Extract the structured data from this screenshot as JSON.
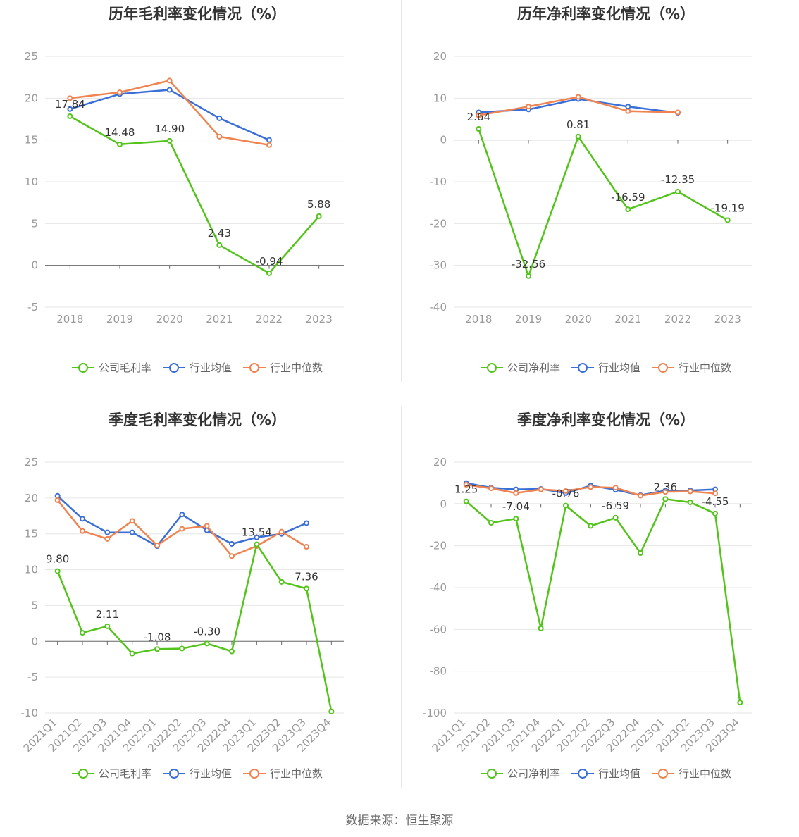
{
  "colors": {
    "company": "#52c41a",
    "industry_avg": "#3a6fd8",
    "industry_median": "#f0834f"
  },
  "legend_labels": {
    "gross": [
      "公司毛利率",
      "行业均值",
      "行业中位数"
    ],
    "net": [
      "公司净利率",
      "行业均值",
      "行业中位数"
    ]
  },
  "source_text": "数据来源：恒生聚源",
  "chart_data": [
    {
      "type": "line",
      "title": "历年毛利率变化情况（%）",
      "categories": [
        "2018",
        "2019",
        "2020",
        "2021",
        "2022",
        "2023"
      ],
      "ylim": [
        -5,
        25
      ],
      "yticks": [
        25,
        20,
        15,
        10,
        5,
        0,
        -5
      ],
      "grid": true,
      "legend": "bottom",
      "series": [
        {
          "name": "公司毛利率",
          "values": [
            17.84,
            14.48,
            14.9,
            2.43,
            -0.94,
            5.88
          ],
          "labels": [
            "17.84",
            "14.48",
            "14.90",
            "2.43",
            "-0.94",
            "5.88"
          ]
        },
        {
          "name": "行业均值",
          "values": [
            18.7,
            20.5,
            21.0,
            17.6,
            15.0,
            null
          ]
        },
        {
          "name": "行业中位数",
          "values": [
            20.0,
            20.7,
            22.1,
            15.4,
            14.4,
            null
          ]
        }
      ]
    },
    {
      "type": "line",
      "title": "历年净利率变化情况（%）",
      "categories": [
        "2018",
        "2019",
        "2020",
        "2021",
        "2022",
        "2023"
      ],
      "ylim": [
        -40,
        20
      ],
      "yticks": [
        20,
        10,
        0,
        -10,
        -20,
        -30,
        -40
      ],
      "grid": true,
      "legend": "bottom",
      "series": [
        {
          "name": "公司净利率",
          "values": [
            2.64,
            -32.56,
            0.81,
            -16.59,
            -12.35,
            -19.19
          ],
          "labels": [
            "2.64",
            "-32.56",
            "0.81",
            "-16.59",
            "-12.35",
            "-19.19"
          ]
        },
        {
          "name": "行业均值",
          "values": [
            6.6,
            7.3,
            9.8,
            8.0,
            6.5,
            null
          ]
        },
        {
          "name": "行业中位数",
          "values": [
            5.9,
            8.0,
            10.3,
            6.9,
            6.6,
            null
          ]
        }
      ]
    },
    {
      "type": "line",
      "title": "季度毛利率变化情况（%）",
      "categories": [
        "2021Q1",
        "2021Q2",
        "2021Q3",
        "2021Q4",
        "2022Q1",
        "2022Q2",
        "2022Q3",
        "2022Q4",
        "2023Q1",
        "2023Q2",
        "2023Q3",
        "2023Q4"
      ],
      "ylim": [
        -10,
        25
      ],
      "yticks": [
        25,
        20,
        15,
        10,
        5,
        0,
        -5,
        -10
      ],
      "grid": true,
      "legend": "bottom",
      "series": [
        {
          "name": "公司毛利率",
          "values": [
            9.8,
            1.2,
            2.11,
            -1.7,
            -1.08,
            -1.0,
            -0.3,
            -1.4,
            13.54,
            8.3,
            7.36,
            -9.8
          ],
          "labels": [
            "9.80",
            "",
            "2.11",
            "",
            "-1.08",
            "",
            "-0.30",
            "",
            "13.54",
            "",
            "7.36",
            ""
          ]
        },
        {
          "name": "行业均值",
          "values": [
            20.3,
            17.1,
            15.2,
            15.2,
            13.3,
            17.7,
            15.5,
            13.6,
            14.5,
            15.0,
            16.5,
            null
          ]
        },
        {
          "name": "行业中位数",
          "values": [
            19.7,
            15.4,
            14.3,
            16.8,
            13.4,
            15.7,
            16.1,
            11.9,
            13.3,
            15.3,
            13.2,
            null
          ]
        }
      ]
    },
    {
      "type": "line",
      "title": "季度净利率变化情况（%）",
      "categories": [
        "2021Q1",
        "2021Q2",
        "2021Q3",
        "2021Q4",
        "2022Q1",
        "2022Q2",
        "2022Q3",
        "2022Q4",
        "2023Q1",
        "2023Q2",
        "2023Q3",
        "2023Q4"
      ],
      "ylim": [
        -100,
        20
      ],
      "yticks": [
        20,
        0,
        -20,
        -40,
        -60,
        -80,
        -100
      ],
      "grid": true,
      "legend": "bottom",
      "series": [
        {
          "name": "公司净利率",
          "values": [
            1.25,
            -9.0,
            -7.04,
            -59.5,
            -0.76,
            -10.5,
            -6.59,
            -23.5,
            2.36,
            0.8,
            -4.55,
            -95.0
          ],
          "labels": [
            "1.25",
            "",
            "-7.04",
            "",
            "-0.76",
            "",
            "-6.59",
            "",
            "2.36",
            "",
            "-4.55",
            ""
          ]
        },
        {
          "name": "行业均值",
          "values": [
            10.0,
            7.8,
            7.0,
            7.2,
            5.2,
            8.8,
            6.8,
            4.2,
            6.4,
            6.5,
            7.0,
            null
          ]
        },
        {
          "name": "行业中位数",
          "values": [
            9.2,
            7.5,
            5.2,
            7.0,
            6.2,
            8.1,
            7.8,
            4.0,
            5.8,
            6.0,
            5.1,
            null
          ]
        }
      ]
    }
  ]
}
